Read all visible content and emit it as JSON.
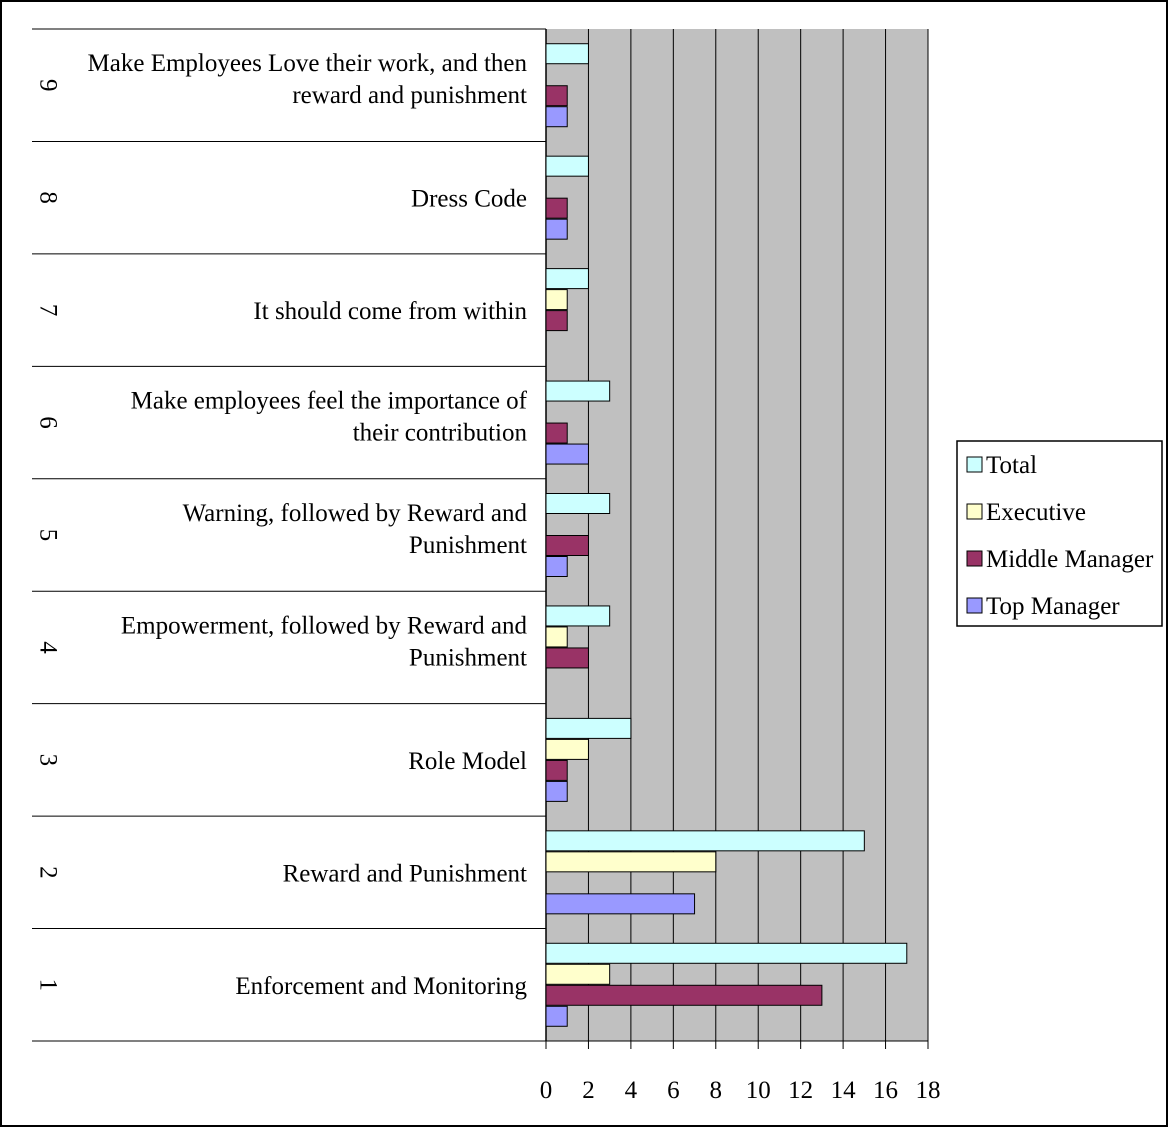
{
  "chart_data": {
    "type": "bar",
    "orientation": "horizontal",
    "title": "",
    "xlabel": "",
    "ylabel": "",
    "xlim": [
      0,
      18
    ],
    "ticks": [
      0,
      2,
      4,
      6,
      8,
      10,
      12,
      14,
      16,
      18
    ],
    "grid": true,
    "plot_background": "#c0c0c0",
    "legend_position": "right",
    "categories": [
      {
        "num": "1",
        "label_lines": [
          "Enforcement and Monitoring"
        ]
      },
      {
        "num": "2",
        "label_lines": [
          "Reward and Punishment"
        ]
      },
      {
        "num": "3",
        "label_lines": [
          "Role Model"
        ]
      },
      {
        "num": "4",
        "label_lines": [
          "Empowerment, followed by Reward and",
          "Punishment"
        ]
      },
      {
        "num": "5",
        "label_lines": [
          "Warning, followed by Reward and",
          "Punishment"
        ]
      },
      {
        "num": "6",
        "label_lines": [
          "Make employees feel the importance of",
          "their contribution"
        ]
      },
      {
        "num": "7",
        "label_lines": [
          "It should come from within"
        ]
      },
      {
        "num": "8",
        "label_lines": [
          "Dress Code"
        ]
      },
      {
        "num": "9",
        "label_lines": [
          "Make Employees Love their work, and then",
          "reward and punishment"
        ]
      }
    ],
    "series": [
      {
        "name": "Total",
        "color": "#ccffff",
        "values": [
          17,
          15,
          4,
          3,
          3,
          3,
          2,
          2,
          2
        ]
      },
      {
        "name": "Executive",
        "color": "#ffffcc",
        "values": [
          3,
          8,
          2,
          1,
          0,
          0,
          1,
          0,
          0
        ]
      },
      {
        "name": "Middle Manager",
        "color": "#993366",
        "values": [
          13,
          0,
          1,
          2,
          2,
          1,
          1,
          1,
          1
        ]
      },
      {
        "name": "Top Manager",
        "color": "#9999ff",
        "values": [
          1,
          7,
          1,
          0,
          1,
          2,
          0,
          1,
          1
        ]
      }
    ]
  }
}
